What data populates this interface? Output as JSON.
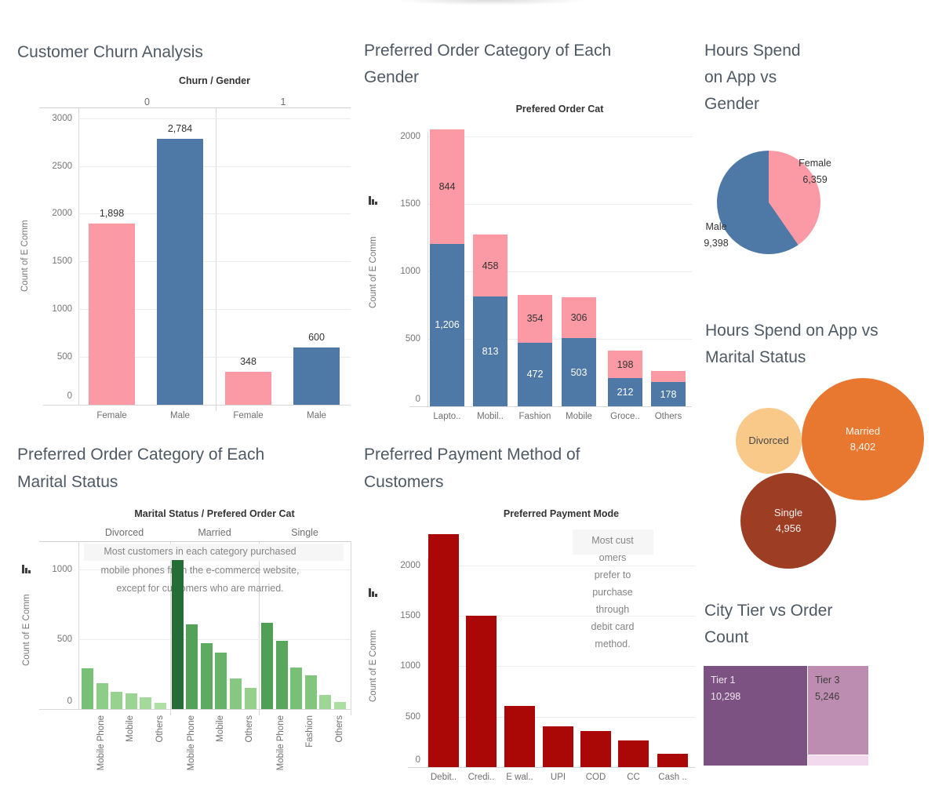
{
  "page": {
    "background": "#ffffff"
  },
  "palette": {
    "female_pink": "#fb9aa4",
    "male_blue": "#4e79a7",
    "payment_red": "#aa0707",
    "title_color": "#4e5964"
  },
  "chart_data": [
    {
      "type": "bar",
      "title": "Customer Churn Analysis",
      "title_lines": [
        "Customer Churn Analysis"
      ],
      "col_header": "Churn / Gender",
      "groups": [
        "0",
        "1"
      ],
      "categories": [
        "Female",
        "Male",
        "Female",
        "Male"
      ],
      "values": [
        1898,
        2784,
        348,
        600
      ],
      "value_labels": [
        "1,898",
        "2,784",
        "348",
        "600"
      ],
      "colors": [
        "#fb9aa4",
        "#4e79a7",
        "#fb9aa4",
        "#4e79a7"
      ],
      "ylabel": "Count of E Comm",
      "yticks": [
        0,
        500,
        1000,
        1500,
        2000,
        2500,
        3000
      ],
      "ylim": [
        0,
        3200
      ]
    },
    {
      "type": "stacked-bar",
      "title": "Preferred Order Category of Each Gender",
      "title_lines": [
        "Preferred Order Category of Each",
        "Gender"
      ],
      "subtitle": "Prefered Order Cat",
      "categories": [
        "Lapto..",
        "Mobil..",
        "Fashion",
        "Mobile",
        "Groce..",
        "Others"
      ],
      "series": [
        {
          "name": "Male",
          "color": "#4e79a7",
          "values": [
            1206,
            813,
            472,
            503,
            212,
            178
          ],
          "value_labels": [
            "1,206",
            "813",
            "472",
            "503",
            "212",
            "178"
          ],
          "label_color": "#ffffff"
        },
        {
          "name": "Female",
          "color": "#fb9aa4",
          "values": [
            844,
            458,
            354,
            306,
            198,
            86
          ],
          "value_labels": [
            "844",
            "458",
            "354",
            "306",
            "198",
            ""
          ],
          "label_color": "#333333"
        }
      ],
      "ylabel": "Count of E Comm",
      "yticks": [
        0,
        500,
        1000,
        1500,
        2000
      ],
      "ylim": [
        0,
        2100
      ]
    },
    {
      "type": "pie",
      "title": "Hours Spend on App vs Gender",
      "title_lines": [
        "Hours Spend",
        "on App vs",
        "Gender"
      ],
      "slices": [
        {
          "label": "Female",
          "value": 6359,
          "value_label": "6,359",
          "color": "#fb9aa4"
        },
        {
          "label": "Male",
          "value": 9398,
          "value_label": "9,398",
          "color": "#4e79a7"
        }
      ]
    },
    {
      "type": "bubble",
      "title": "Hours Spend on App vs Marital Status",
      "title_lines": [
        "Hours Spend on App vs",
        "Marital Status"
      ],
      "bubbles": [
        {
          "label": "Divorced",
          "value_label": "",
          "color": "#f9c98a",
          "text_color": "#474747"
        },
        {
          "label": "Married",
          "value": 8402,
          "value_label": "8,402",
          "color": "#e8782f",
          "text_color": "rgba(255,255,255,0.92)"
        },
        {
          "label": "Single",
          "value": 4956,
          "value_label": "4,956",
          "color": "#9c3d24",
          "text_color": "rgba(255,255,255,0.92)"
        }
      ]
    },
    {
      "type": "grouped-bar",
      "title": "Preferred Order Category of Each Marital Status",
      "title_lines": [
        "Preferred Order Category of Each",
        "Marital Status"
      ],
      "col_header": "Marital Status / Prefered Order Cat",
      "ylabel": "Count of E Comm",
      "yticks": [
        0,
        500,
        1000
      ],
      "annotation_lines": [
        "Most customers in each category purchased",
        "mobile phones from the e-commerce website,",
        "except for customers who are married."
      ],
      "groups": [
        {
          "label": "Divorced",
          "values": [
            290,
            185,
            125,
            110,
            85,
            45
          ],
          "colors": [
            "#77c076",
            "#8ecd88",
            "#97d28f",
            "#9bd492",
            "#a3da9a",
            "#aedfa4"
          ],
          "x_labels": [
            "",
            "Mobile Phone",
            "",
            "Mobile",
            "",
            "Others"
          ]
        },
        {
          "label": "Married",
          "values": [
            1070,
            605,
            470,
            405,
            220,
            150
          ],
          "colors": [
            "#266c36",
            "#52a258",
            "#5cab61",
            "#66b269",
            "#86c881",
            "#95d18d"
          ],
          "x_labels": [
            "",
            "Mobile Phone",
            "",
            "Mobile",
            "",
            "Others"
          ]
        },
        {
          "label": "Single",
          "values": [
            620,
            490,
            295,
            240,
            100,
            50
          ],
          "colors": [
            "#4f9f55",
            "#58a75d",
            "#77c076",
            "#82c67e",
            "#9dd695",
            "#abdfa2"
          ],
          "x_labels": [
            "",
            "Mobile Phone",
            "",
            "Fashion",
            "",
            "Others"
          ]
        }
      ],
      "ylim": [
        0,
        1200
      ]
    },
    {
      "type": "bar",
      "title": "Preferred Payment Method of Customers",
      "title_lines": [
        "Preferred Payment Method of",
        "Customers"
      ],
      "subtitle": "Preferred Payment Mode",
      "categories": [
        "Debit..",
        "Credi..",
        "E wal..",
        "UPI",
        "COD",
        "CC",
        "Cash .."
      ],
      "values": [
        2310,
        1500,
        610,
        405,
        360,
        265,
        130
      ],
      "color": "#aa0707",
      "ylabel": "Count of E Comm",
      "yticks": [
        0,
        500,
        1000,
        1500,
        2000
      ],
      "ylim": [
        0,
        2400
      ],
      "annotation_lines": [
        "Most cust",
        "omers",
        "prefer to",
        "purchase",
        "through",
        "debit card",
        "method."
      ]
    },
    {
      "type": "treemap",
      "title": "City Tier vs Order Count",
      "title_lines": [
        "City Tier vs Order",
        "Count"
      ],
      "blocks": [
        {
          "label": "Tier 1",
          "value": 10298,
          "value_label": "10,298",
          "color": "#7c5282",
          "text_color": "#f0e4ef"
        },
        {
          "label": "Tier 3",
          "value": 5246,
          "value_label": "5,246",
          "color": "#bc8db1",
          "text_color": "#3d3d3d"
        },
        {
          "label": "",
          "value_label": "",
          "color": "#f2d9ee",
          "text_color": ""
        }
      ]
    }
  ]
}
